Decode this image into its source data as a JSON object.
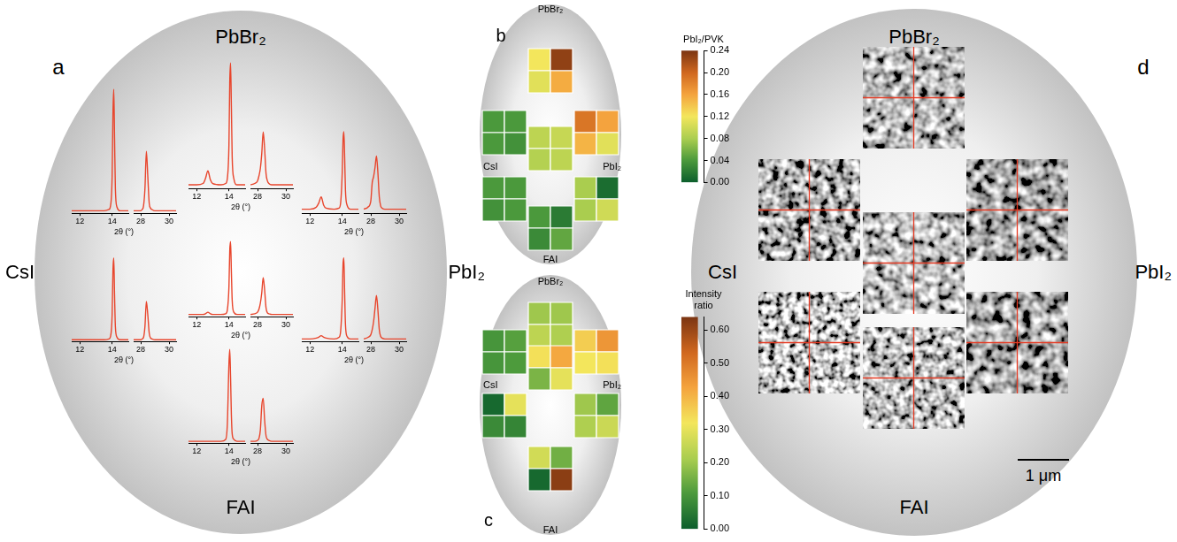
{
  "wafer_labels": {
    "top": "PbBr₂",
    "left": "CsI",
    "right": "PbI₂",
    "bottom": "FAI"
  },
  "chart_data": [
    {
      "panel": "a",
      "type": "line",
      "x_label": "2θ (°)",
      "color": "#e8452c",
      "tick_labels": "x",
      "ylim": [
        0,
        105
      ],
      "segments": [
        {
          "xlim": [
            11.5,
            15
          ],
          "xticks": [
            12,
            14
          ],
          "x": [
            11.5,
            12,
            12.4,
            12.55,
            12.7,
            12.85,
            13,
            13.5,
            13.8,
            13.9,
            14,
            14.05,
            14.1,
            14.15,
            14.2,
            14.3,
            14.5,
            15
          ]
        },
        {
          "xlim": [
            27.5,
            30.5
          ],
          "xticks": [
            28,
            30
          ],
          "x": [
            27.5,
            27.8,
            28,
            28.1,
            28.2,
            28.3,
            28.4,
            28.5,
            28.6,
            28.7,
            28.8,
            29,
            29.5,
            30,
            30.5
          ]
        }
      ],
      "plots": [
        {
          "values": [
            [
              2,
              2,
              2,
              2,
              2,
              2,
              2,
              2,
              3,
              6,
              30,
              80,
              100,
              60,
              20,
              5,
              2,
              2
            ],
            [
              2,
              2,
              2,
              3,
              6,
              20,
              50,
              30,
              8,
              4,
              3,
              2,
              2,
              2,
              2
            ]
          ]
        },
        {
          "values": [
            [
              3,
              3,
              4,
              8,
              14,
              7,
              4,
              3,
              4,
              8,
              35,
              85,
              100,
              65,
              25,
              8,
              3,
              3
            ],
            [
              3,
              4,
              6,
              10,
              16,
              28,
              45,
              32,
              12,
              6,
              4,
              3,
              3,
              3,
              3
            ]
          ]
        },
        {
          "values": [
            [
              4,
              4,
              6,
              10,
              16,
              8,
              5,
              4,
              5,
              10,
              40,
              72,
              80,
              55,
              22,
              8,
              4,
              4
            ],
            [
              4,
              6,
              12,
              30,
              36,
              45,
              56,
              40,
              16,
              7,
              5,
              4,
              4,
              4,
              4
            ]
          ]
        },
        {
          "values": [
            [
              2,
              2,
              2,
              2,
              2,
              2,
              2,
              2,
              3,
              6,
              32,
              85,
              100,
              55,
              18,
              5,
              2,
              2
            ],
            [
              2,
              2,
              2,
              3,
              5,
              18,
              48,
              32,
              10,
              4,
              3,
              2,
              2,
              2,
              2
            ]
          ]
        },
        {
          "values": [
            [
              3,
              3,
              3,
              4,
              6,
              4,
              3,
              3,
              4,
              9,
              40,
              88,
              100,
              60,
              22,
              6,
              3,
              3
            ],
            [
              3,
              4,
              6,
              10,
              18,
              32,
              52,
              36,
              12,
              5,
              4,
              3,
              3,
              3,
              3
            ]
          ]
        },
        {
          "values": [
            [
              3,
              3,
              4,
              5,
              7,
              5,
              4,
              3,
              5,
              12,
              50,
              92,
              100,
              58,
              20,
              6,
              3,
              3
            ],
            [
              3,
              5,
              8,
              14,
              24,
              40,
              55,
              38,
              14,
              6,
              4,
              3,
              3,
              3,
              3
            ]
          ]
        },
        {
          "values": [
            [
              2,
              2,
              2,
              2,
              2,
              2,
              2,
              2,
              4,
              20,
              85,
              100,
              70,
              30,
              10,
              4,
              2,
              2
            ],
            [
              2,
              2,
              3,
              5,
              14,
              40,
              48,
              25,
              8,
              4,
              3,
              2,
              2,
              2,
              2
            ]
          ]
        }
      ]
    },
    {
      "panel": "b",
      "type": "heatmap",
      "colorbar": {
        "title": "PbI₂/PVK",
        "range": [
          0,
          0.24
        ],
        "ticks": [
          {
            "value": 0,
            "label": "0.00"
          },
          {
            "value": 0.04,
            "label": "0.04"
          },
          {
            "value": 0.08,
            "label": "0.08"
          },
          {
            "value": 0.12,
            "label": "0.12"
          },
          {
            "value": 0.16,
            "label": "0.16"
          },
          {
            "value": 0.2,
            "label": "0.20"
          },
          {
            "value": 0.24,
            "label": "0.24"
          }
        ]
      },
      "cells": [
        [
          [
            0.04,
            0.04
          ],
          [
            0.04,
            0.035
          ]
        ],
        [
          [
            0.12,
            0.23
          ],
          [
            0.11,
            0.155
          ]
        ],
        [
          [
            0.19,
            0.16
          ],
          [
            0.15,
            0.11
          ]
        ],
        [
          [
            0.04,
            0.04
          ],
          [
            0.035,
            0.04
          ]
        ],
        [
          [
            0.09,
            0.095
          ],
          [
            0.085,
            0.09
          ]
        ],
        [
          [
            0.08,
            0.01
          ],
          [
            0.08,
            0.1
          ]
        ],
        [
          [
            0.04,
            0.02
          ],
          [
            0.03,
            0.05
          ]
        ]
      ]
    },
    {
      "panel": "c",
      "type": "heatmap",
      "colorbar": {
        "title": "Intensity ratio",
        "range": [
          0,
          0.64
        ],
        "ticks": [
          {
            "value": 0,
            "label": "0.00"
          },
          {
            "value": 0.1,
            "label": "0.10"
          },
          {
            "value": 0.2,
            "label": "0.20"
          },
          {
            "value": 0.3,
            "label": "0.30"
          },
          {
            "value": 0.4,
            "label": "0.40"
          },
          {
            "value": 0.5,
            "label": "0.50"
          },
          {
            "value": 0.6,
            "label": "0.60"
          }
        ]
      },
      "cells": [
        [
          [
            0.1,
            0.12
          ],
          [
            0.1,
            0.11
          ]
        ],
        [
          [
            0.2,
            0.2
          ],
          [
            0.24,
            0.22
          ]
        ],
        [
          [
            0.36,
            0.45
          ],
          [
            0.32,
            0.33
          ]
        ],
        [
          [
            0.02,
            0.3
          ],
          [
            0.08,
            0.07
          ]
        ],
        [
          [
            0.33,
            0.42
          ],
          [
            0.16,
            0.3
          ]
        ],
        [
          [
            0.2,
            0.13
          ],
          [
            0.22,
            0.26
          ]
        ],
        [
          [
            0.27,
            0.15
          ],
          [
            0.02,
            0.62
          ]
        ]
      ]
    }
  ],
  "images": {
    "panel": "d",
    "scale_bar": "1 μm"
  }
}
